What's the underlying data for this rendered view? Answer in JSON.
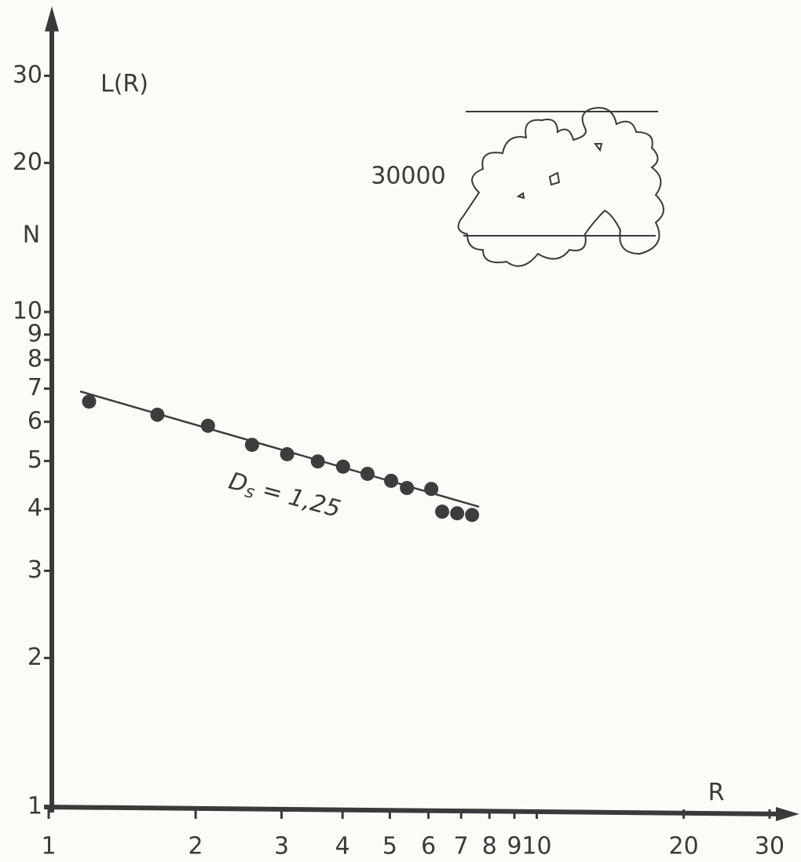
{
  "chart_data": {
    "type": "scatter",
    "ylabel": "L(R)",
    "ylabel2": "N",
    "xlabel": "R",
    "annotation": {
      "main": "D",
      "sub": "s",
      "rest": " = 1,25"
    },
    "inset_label": "30000",
    "xscale": "log",
    "yscale": "log",
    "xlim": [
      1,
      34
    ],
    "ylim": [
      1,
      40
    ],
    "xticks": [
      1,
      2,
      3,
      4,
      5,
      6,
      7,
      8,
      9,
      10,
      20,
      30
    ],
    "yticks": [
      1,
      2,
      3,
      4,
      5,
      6,
      7,
      8,
      9,
      10,
      20,
      30
    ],
    "series": [
      {
        "type": "scatter",
        "color": "#3d3d3d",
        "x": [
          1.21,
          1.67,
          2.12,
          2.61,
          3.08,
          3.56,
          4.01,
          4.5,
          5.03,
          5.42,
          6.08,
          6.4,
          6.87,
          7.37
        ],
        "values": [
          6.59,
          6.2,
          5.89,
          5.39,
          5.16,
          4.99,
          4.87,
          4.71,
          4.56,
          4.41,
          4.39,
          3.95,
          3.92,
          3.89
        ]
      },
      {
        "type": "line",
        "color": "#3d3d3d",
        "x": [
          1.16,
          7.62
        ],
        "values": [
          6.91,
          4.04
        ]
      }
    ]
  }
}
